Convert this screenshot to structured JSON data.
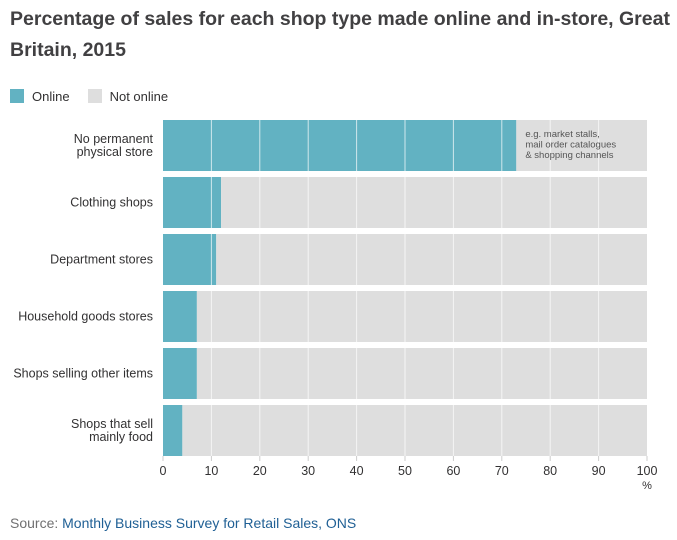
{
  "title": "Percentage of sales for each shop type made online and in-store, Great Britain, 2015",
  "source": {
    "prefix": "Source: ",
    "link_text": "Monthly Business Survey for Retail Sales, ONS"
  },
  "colors": {
    "online": "#62b2c2",
    "not_online": "#dedede",
    "grid": "#ffffff",
    "text": "#323132",
    "link": "#206095"
  },
  "chart_data": {
    "type": "bar",
    "orientation": "horizontal",
    "stacked": true,
    "categories": [
      [
        "No permanent",
        "physical store"
      ],
      [
        "Clothing shops"
      ],
      [
        "Department stores"
      ],
      [
        "Household goods stores"
      ],
      [
        "Shops selling other items"
      ],
      [
        "Shops that sell",
        "mainly food"
      ]
    ],
    "series": [
      {
        "name": "Online",
        "values": [
          73,
          12,
          11,
          7,
          7,
          4
        ]
      },
      {
        "name": "Not online",
        "values": [
          27,
          88,
          89,
          93,
          93,
          96
        ]
      }
    ],
    "xlim": [
      0,
      100
    ],
    "xticks": [
      0,
      10,
      20,
      30,
      40,
      50,
      60,
      70,
      80,
      90,
      100
    ],
    "xunit": "%",
    "legend_position": "top-left",
    "annotation": {
      "category_index": 0,
      "lines": [
        "e.g. market stalls,",
        "mail order catalogues",
        "& shopping channels"
      ]
    }
  }
}
